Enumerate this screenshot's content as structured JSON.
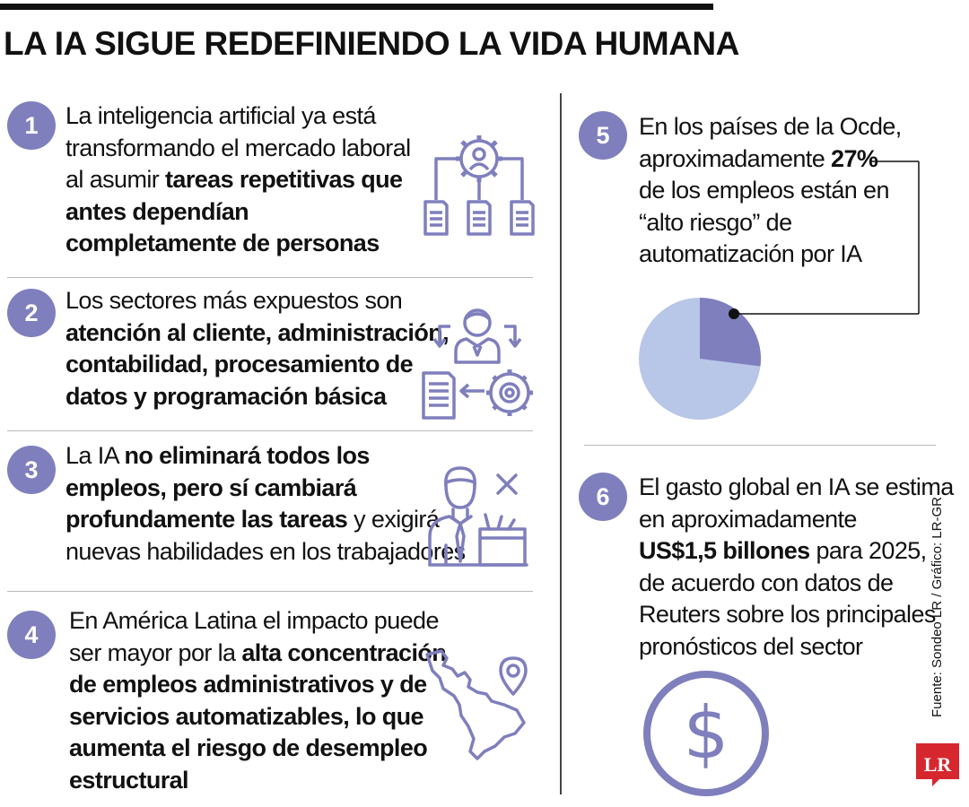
{
  "title": "LA IA SIGUE REDEFINIENDO LA VIDA HUMANA",
  "items": [
    {
      "number": "1",
      "lines": [
        [
          {
            "t": "La inteligencia artificial ya está",
            "b": false
          }
        ],
        [
          {
            "t": "transformando el mercado laboral",
            "b": false
          }
        ],
        [
          {
            "t": "al asumir ",
            "b": false
          },
          {
            "t": "tareas repetitivas que",
            "b": true
          }
        ],
        [
          {
            "t": "antes dependían",
            "b": true
          }
        ],
        [
          {
            "t": "completamente de personas",
            "b": true
          }
        ]
      ],
      "icon": "workflow-gear-documents-icon"
    },
    {
      "number": "2",
      "lines": [
        [
          {
            "t": "Los sectores más expuestos son",
            "b": false
          }
        ],
        [
          {
            "t": "atención al cliente, administración,",
            "b": true
          }
        ],
        [
          {
            "t": "contabilidad, procesamiento de",
            "b": true
          }
        ],
        [
          {
            "t": "datos y programación básica",
            "b": true
          }
        ]
      ],
      "icon": "person-document-gear-cycle-icon"
    },
    {
      "number": "3",
      "lines": [
        [
          {
            "t": "La IA ",
            "b": false
          },
          {
            "t": "no eliminará todos los",
            "b": true
          }
        ],
        [
          {
            "t": "empleos, pero sí cambiará",
            "b": true
          }
        ],
        [
          {
            "t": "profundamente las tareas",
            "b": true
          },
          {
            "t": " y exigirá",
            "b": false
          }
        ],
        [
          {
            "t": "nuevas habilidades en los trabajadores",
            "b": false
          }
        ]
      ],
      "icon": "worker-with-box-icon"
    },
    {
      "number": "4",
      "lines": [
        [
          {
            "t": "En América Latina el impacto puede",
            "b": false
          }
        ],
        [
          {
            "t": "ser mayor por la ",
            "b": false
          },
          {
            "t": "alta concentración",
            "b": true
          }
        ],
        [
          {
            "t": "de empleos administrativos y de",
            "b": true
          }
        ],
        [
          {
            "t": "servicios automatizables, lo que",
            "b": true
          }
        ],
        [
          {
            "t": "aumenta el riesgo de desempleo",
            "b": true
          }
        ],
        [
          {
            "t": "estructural",
            "b": true
          }
        ]
      ],
      "icon": "latin-america-map-pin-icon"
    },
    {
      "number": "5",
      "lines": [
        [
          {
            "t": "En los países de la Ocde,",
            "b": false
          }
        ],
        [
          {
            "t": "aproximadamente ",
            "b": false
          },
          {
            "t": "27%",
            "b": true
          }
        ],
        [
          {
            "t": "de los empleos están en",
            "b": false
          }
        ],
        [
          {
            "t": "“alto riesgo” de",
            "b": false
          }
        ],
        [
          {
            "t": "automatización por IA",
            "b": false
          }
        ]
      ],
      "icon": "pie-chart-icon",
      "pie": {
        "highlight_percent": 27,
        "highlight_color": "#7f7fbd",
        "rest_color": "#b8c6e8"
      }
    },
    {
      "number": "6",
      "lines": [
        [
          {
            "t": "El gasto global en IA se estima",
            "b": false
          }
        ],
        [
          {
            "t": "en aproximadamente",
            "b": false
          }
        ],
        [
          {
            "t": "US$1,5 billones",
            "b": true
          },
          {
            "t": " para 2025,",
            "b": false
          }
        ],
        [
          {
            "t": "de acuerdo con datos de",
            "b": false
          }
        ],
        [
          {
            "t": "Reuters sobre los principales",
            "b": false
          }
        ],
        [
          {
            "t": "pronósticos del sector",
            "b": false
          }
        ]
      ],
      "icon": "dollar-coin-icon"
    }
  ],
  "source": "Fuente: Sondeo LR / Gráfico: LR-GR",
  "logo_text": "LR",
  "colors": {
    "accent": "#7f7fbd",
    "icon_stroke": "#7f7fbd",
    "pie_light": "#b8c6e8",
    "logo": "#d6272f"
  }
}
